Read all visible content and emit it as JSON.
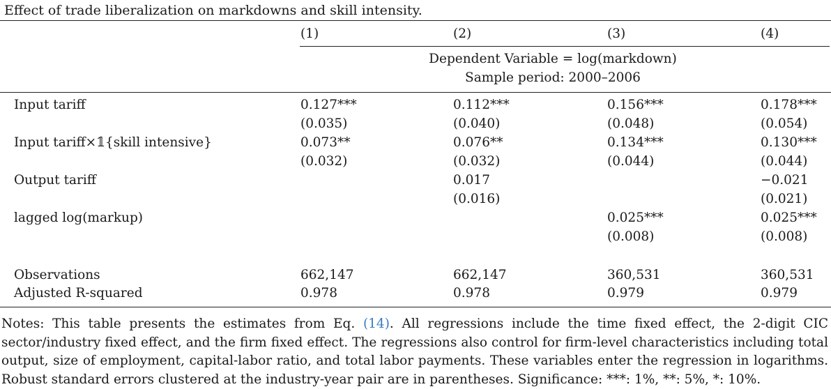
{
  "caption": "Effect of trade liberalization on markdowns and skill intensity.",
  "columns": [
    "(1)",
    "(2)",
    "(3)",
    "(4)"
  ],
  "dependent_variable": "Dependent Variable = log(markdown)",
  "sample_period": "Sample period: 2000–2006",
  "rows": [
    {
      "label": "Input tariff",
      "values": [
        "0.127***",
        "0.112***",
        "0.156***",
        "0.178***"
      ],
      "se": [
        "(0.035)",
        "(0.040)",
        "(0.048)",
        "(0.054)"
      ]
    },
    {
      "label": "Input tariff×𝟙{skill intensive}",
      "values": [
        "0.073**",
        "0.076**",
        "0.134***",
        "0.130***"
      ],
      "se": [
        "(0.032)",
        "(0.032)",
        "(0.044)",
        "(0.044)"
      ]
    },
    {
      "label": "Output tariff",
      "values": [
        "",
        "0.017",
        "",
        "−0.021"
      ],
      "se": [
        "",
        "(0.016)",
        "",
        "(0.021)"
      ]
    },
    {
      "label": "lagged log(markup)",
      "values": [
        "",
        "",
        "0.025***",
        "0.025***"
      ],
      "se": [
        "",
        "",
        "(0.008)",
        "(0.008)"
      ]
    }
  ],
  "stats": [
    {
      "label": "Observations",
      "values": [
        "662,147",
        "662,147",
        "360,531",
        "360,531"
      ]
    },
    {
      "label": "Adjusted R-squared",
      "values": [
        "0.978",
        "0.978",
        "0.979",
        "0.979"
      ]
    }
  ],
  "notes": {
    "before": "Notes: This table presents the estimates from Eq. ",
    "ref": "(14)",
    "after": ". All regressions include the time fixed effect, the 2-digit CIC sector/industry fixed effect, and the firm fixed effect. The regressions also control for firm-level characteristics including total output, size of employment, capital-labor ratio, and total labor payments. These variables enter the regression in logarithms. Robust standard errors clustered at the industry-year pair are in parentheses. Significance: ***: 1%, **: 5%, *: 10%."
  }
}
